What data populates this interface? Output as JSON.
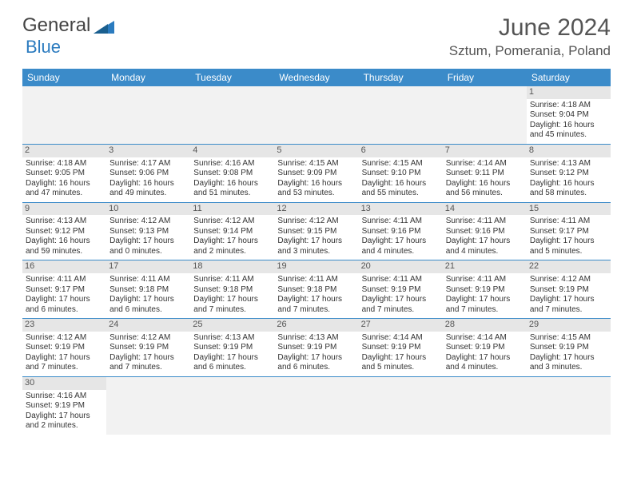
{
  "logo": {
    "text1": "General",
    "text2": "Blue",
    "accent_color": "#2b7bbf"
  },
  "title": "June 2024",
  "location": "Sztum, Pomerania, Poland",
  "colors": {
    "header_bg": "#3b8bc9",
    "header_text": "#ffffff",
    "daynum_bg": "#e6e6e6",
    "border": "#3b8bc9",
    "text": "#333333"
  },
  "weekdays": [
    "Sunday",
    "Monday",
    "Tuesday",
    "Wednesday",
    "Thursday",
    "Friday",
    "Saturday"
  ],
  "days": [
    {
      "n": "1",
      "sr": "4:18 AM",
      "ss": "9:04 PM",
      "dl": "16 hours and 45 minutes."
    },
    {
      "n": "2",
      "sr": "4:18 AM",
      "ss": "9:05 PM",
      "dl": "16 hours and 47 minutes."
    },
    {
      "n": "3",
      "sr": "4:17 AM",
      "ss": "9:06 PM",
      "dl": "16 hours and 49 minutes."
    },
    {
      "n": "4",
      "sr": "4:16 AM",
      "ss": "9:08 PM",
      "dl": "16 hours and 51 minutes."
    },
    {
      "n": "5",
      "sr": "4:15 AM",
      "ss": "9:09 PM",
      "dl": "16 hours and 53 minutes."
    },
    {
      "n": "6",
      "sr": "4:15 AM",
      "ss": "9:10 PM",
      "dl": "16 hours and 55 minutes."
    },
    {
      "n": "7",
      "sr": "4:14 AM",
      "ss": "9:11 PM",
      "dl": "16 hours and 56 minutes."
    },
    {
      "n": "8",
      "sr": "4:13 AM",
      "ss": "9:12 PM",
      "dl": "16 hours and 58 minutes."
    },
    {
      "n": "9",
      "sr": "4:13 AM",
      "ss": "9:12 PM",
      "dl": "16 hours and 59 minutes."
    },
    {
      "n": "10",
      "sr": "4:12 AM",
      "ss": "9:13 PM",
      "dl": "17 hours and 0 minutes."
    },
    {
      "n": "11",
      "sr": "4:12 AM",
      "ss": "9:14 PM",
      "dl": "17 hours and 2 minutes."
    },
    {
      "n": "12",
      "sr": "4:12 AM",
      "ss": "9:15 PM",
      "dl": "17 hours and 3 minutes."
    },
    {
      "n": "13",
      "sr": "4:11 AM",
      "ss": "9:16 PM",
      "dl": "17 hours and 4 minutes."
    },
    {
      "n": "14",
      "sr": "4:11 AM",
      "ss": "9:16 PM",
      "dl": "17 hours and 4 minutes."
    },
    {
      "n": "15",
      "sr": "4:11 AM",
      "ss": "9:17 PM",
      "dl": "17 hours and 5 minutes."
    },
    {
      "n": "16",
      "sr": "4:11 AM",
      "ss": "9:17 PM",
      "dl": "17 hours and 6 minutes."
    },
    {
      "n": "17",
      "sr": "4:11 AM",
      "ss": "9:18 PM",
      "dl": "17 hours and 6 minutes."
    },
    {
      "n": "18",
      "sr": "4:11 AM",
      "ss": "9:18 PM",
      "dl": "17 hours and 7 minutes."
    },
    {
      "n": "19",
      "sr": "4:11 AM",
      "ss": "9:18 PM",
      "dl": "17 hours and 7 minutes."
    },
    {
      "n": "20",
      "sr": "4:11 AM",
      "ss": "9:19 PM",
      "dl": "17 hours and 7 minutes."
    },
    {
      "n": "21",
      "sr": "4:11 AM",
      "ss": "9:19 PM",
      "dl": "17 hours and 7 minutes."
    },
    {
      "n": "22",
      "sr": "4:12 AM",
      "ss": "9:19 PM",
      "dl": "17 hours and 7 minutes."
    },
    {
      "n": "23",
      "sr": "4:12 AM",
      "ss": "9:19 PM",
      "dl": "17 hours and 7 minutes."
    },
    {
      "n": "24",
      "sr": "4:12 AM",
      "ss": "9:19 PM",
      "dl": "17 hours and 7 minutes."
    },
    {
      "n": "25",
      "sr": "4:13 AM",
      "ss": "9:19 PM",
      "dl": "17 hours and 6 minutes."
    },
    {
      "n": "26",
      "sr": "4:13 AM",
      "ss": "9:19 PM",
      "dl": "17 hours and 6 minutes."
    },
    {
      "n": "27",
      "sr": "4:14 AM",
      "ss": "9:19 PM",
      "dl": "17 hours and 5 minutes."
    },
    {
      "n": "28",
      "sr": "4:14 AM",
      "ss": "9:19 PM",
      "dl": "17 hours and 4 minutes."
    },
    {
      "n": "29",
      "sr": "4:15 AM",
      "ss": "9:19 PM",
      "dl": "17 hours and 3 minutes."
    },
    {
      "n": "30",
      "sr": "4:16 AM",
      "ss": "9:19 PM",
      "dl": "17 hours and 2 minutes."
    }
  ],
  "first_weekday_index": 6,
  "labels": {
    "sunrise": "Sunrise:",
    "sunset": "Sunset:",
    "daylight": "Daylight:"
  }
}
